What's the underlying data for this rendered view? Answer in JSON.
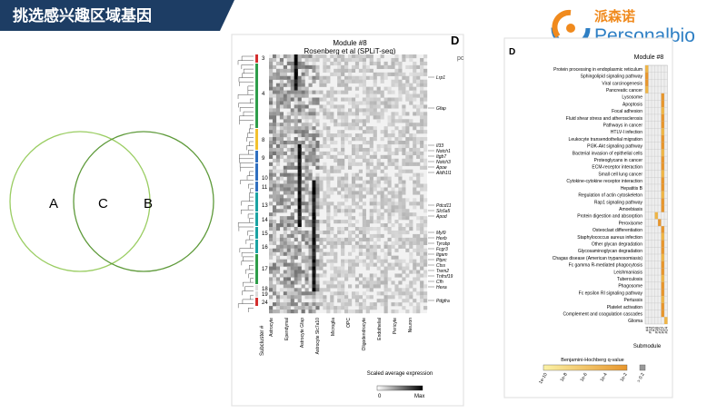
{
  "header": {
    "title": "挑选感兴趣区域基因"
  },
  "logo": {
    "cn": "派森诺",
    "en": "Personalbio"
  },
  "venn": {
    "labels": [
      "A",
      "C",
      "B"
    ]
  },
  "figure_left": {
    "panel_letter": "D",
    "cut_text": "pc",
    "title": "Module #8",
    "subtitle": "Rosenberg et al (SPLiT-seq)",
    "subclusters": [
      "3",
      "4",
      "8",
      "9",
      "10",
      "11",
      "13",
      "14",
      "15",
      "16",
      "17",
      "18",
      "19",
      "24"
    ],
    "subcluster_axis": "Subcluster #",
    "genes": [
      "Lrp1",
      "Gfap",
      "Il33",
      "Notch1",
      "Itgb7",
      "Notch3",
      "Apoe",
      "Aldh1l1",
      "Pdcd11",
      "Slc6a5",
      "Apod",
      "Myl9",
      "Hexb",
      "Tyrobp",
      "Fcgr3",
      "Itgam",
      "Ptprc",
      "Ctss",
      "Trem2",
      "Tnfrsf19",
      "Cfh",
      "Hexa",
      "Pdgfra"
    ],
    "cell_types": [
      "Astrocyte",
      "Ependymal",
      "Astrocyte Gfap",
      "Astrocyte Slc7a10",
      "Microglia",
      "OPC",
      "Oligodendrocyte",
      "Endothelial",
      "Pericyte",
      "Neuron"
    ],
    "legend": {
      "title": "Scaled average expression",
      "min": "0",
      "max": "Max"
    }
  },
  "figure_right": {
    "panel_letter": "D",
    "title": "Module #8",
    "pathways": [
      "Protein processing in endoplasmic reticulum",
      "Sphingolipid signaling pathway",
      "Viral carcinogenesis",
      "Pancreatic cancer",
      "Lysosome",
      "Apoptosis",
      "Focal adhesion",
      "Fluid shear stress and atherosclerosis",
      "Pathways in cancer",
      "HTLV-I infection",
      "Leukocyte transendothelial migration",
      "PI3K-Akt signaling pathway",
      "Bacterial invasion of epithelial cells",
      "Proteoglycans in cancer",
      "ECM-receptor interaction",
      "Small cell lung cancer",
      "Cytokine-cytokine receptor interaction",
      "Hepatitis B",
      "Regulation of actin cytoskeleton",
      "Rap1 signaling pathway",
      "Amoebiasis",
      "Protein digestion and absorption",
      "Peroxisome",
      "Osteoclast differentiation",
      "Staphylococcus aureus infection",
      "Other glycan degradation",
      "Glycosaminoglycan degradation",
      "Chagas disease (American trypanosomiasis)",
      "Fc gamma R-mediated phagocytosis",
      "Leishmaniasis",
      "Tuberculosis",
      "Phagosome",
      "Fc epsilon RI signaling pathway",
      "Pertussis",
      "Platelet activation",
      "Complement and coagulation cascades",
      "Glioma"
    ],
    "submodules": [
      "#4",
      "#13",
      "#3",
      "#16",
      "#15",
      "#17",
      "#24"
    ],
    "xlabel": "Submodule",
    "legend": {
      "title": "Benjamini-Hochberg q-value",
      "ticks": [
        "1e-10",
        "1e-8",
        "1e-6",
        "1e-4",
        "1e-2",
        "> 0.2"
      ]
    }
  }
}
